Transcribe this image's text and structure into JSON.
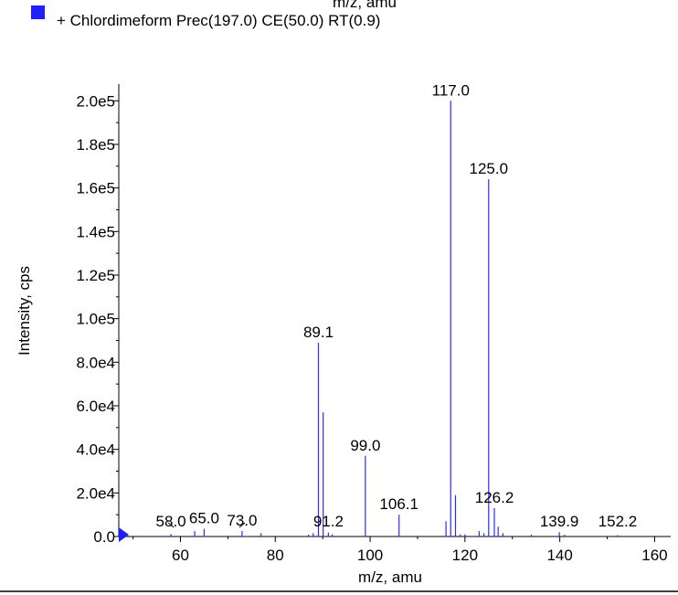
{
  "chart_data": {
    "type": "bar",
    "top_label": "m/z, amu",
    "legend": {
      "label": "+ Chlordimeform  Prec(197.0) CE(50.0) RT(0.9)",
      "color": "#1f1fff"
    },
    "xlabel": "m/z, amu",
    "ylabel": "Intensity, cps",
    "xlim": [
      47,
      163
    ],
    "ylim": [
      0,
      206000
    ],
    "xticks": [
      60,
      80,
      100,
      120,
      140,
      160
    ],
    "xtick_labels": [
      "60",
      "80",
      "100",
      "120",
      "140",
      "160"
    ],
    "yticks": [
      0,
      20000,
      40000,
      60000,
      80000,
      100000,
      120000,
      140000,
      160000,
      180000,
      200000
    ],
    "ytick_labels": [
      "0.0",
      "2.0e4",
      "4.0e4",
      "6.0e4",
      "8.0e4",
      "1.0e5",
      "1.2e5",
      "1.4e5",
      "1.6e5",
      "1.8e5",
      "2.0e5"
    ],
    "bar_color": "#2b2bff",
    "series": [
      {
        "x": [
          58.0,
          63.0,
          65.0,
          73.0,
          77.0,
          87.0,
          88.0,
          89.1,
          90.1,
          91.2,
          92.0,
          99.0,
          106.1,
          116.0,
          117.0,
          118.0,
          119.0,
          120.0,
          123.0,
          124.0,
          125.0,
          126.2,
          127.0,
          128.0,
          134.0,
          139.9,
          141.0,
          152.2
        ],
        "values": [
          1200,
          2500,
          3500,
          2500,
          1500,
          800,
          1500,
          89000,
          57000,
          1800,
          1000,
          37000,
          10000,
          7000,
          200000,
          19000,
          1000,
          1000,
          2500,
          1500,
          164000,
          13000,
          4500,
          1500,
          800,
          2000,
          800,
          600
        ]
      }
    ],
    "peak_labels": [
      {
        "x": 58.0,
        "y": 1200,
        "text": "58.0"
      },
      {
        "x": 65.0,
        "y": 3500,
        "text": "65.0"
      },
      {
        "x": 73.0,
        "y": 2500,
        "text": "73.0"
      },
      {
        "x": 89.1,
        "y": 89000,
        "text": "89.1"
      },
      {
        "x": 91.2,
        "y": 1800,
        "text": "91.2"
      },
      {
        "x": 99.0,
        "y": 37000,
        "text": "99.0"
      },
      {
        "x": 106.1,
        "y": 10000,
        "text": "106.1"
      },
      {
        "x": 117.0,
        "y": 200000,
        "text": "117.0"
      },
      {
        "x": 125.0,
        "y": 164000,
        "text": "125.0"
      },
      {
        "x": 126.2,
        "y": 13000,
        "text": "126.2"
      },
      {
        "x": 139.9,
        "y": 2000,
        "text": "139.9"
      },
      {
        "x": 152.2,
        "y": 600,
        "text": "152.2"
      }
    ]
  }
}
